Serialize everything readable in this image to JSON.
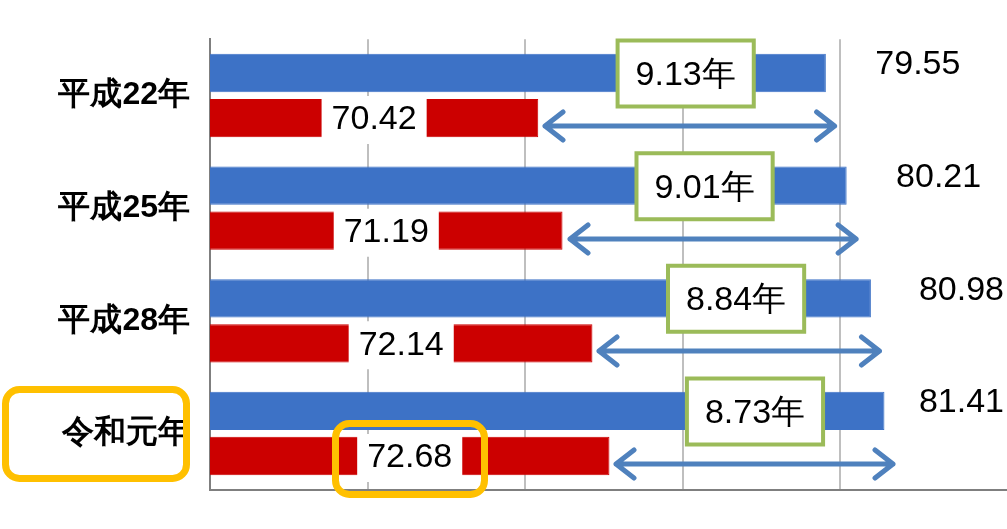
{
  "chart_data": {
    "type": "bar",
    "orientation": "horizontal",
    "categories": [
      "平成22年",
      "平成25年",
      "平成28年",
      "令和元年"
    ],
    "series": [
      {
        "color": "#3d72c6",
        "values": [
          79.55,
          80.21,
          80.98,
          81.41
        ]
      },
      {
        "color": "#cc0000",
        "values": [
          70.42,
          71.19,
          72.14,
          72.68
        ]
      }
    ],
    "xlim": [
      60,
      85.3
    ],
    "xticks": [
      {
        "value": 60,
        "label": null
      },
      {
        "value": 65,
        "label": null
      },
      {
        "value": 70,
        "label": null
      },
      {
        "value": 75,
        "label": null
      },
      {
        "value": 80,
        "label": null
      }
    ],
    "grid": "x",
    "legend": false,
    "data_labels": true,
    "annotations": [
      {
        "text": "9.13年",
        "x": 75.1,
        "y": "平成22年"
      },
      {
        "text": "9.01年",
        "x": 75.7,
        "y": "平成25年"
      },
      {
        "text": "8.84年",
        "x": 76.7,
        "y": "平成28年"
      },
      {
        "text": "8.73年",
        "x": 77.3,
        "y": "令和元年"
      }
    ]
  }
}
